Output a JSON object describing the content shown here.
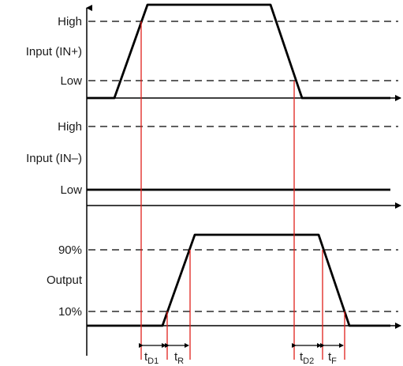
{
  "panels": {
    "input_plus": {
      "title": "Input (IN+)",
      "high": "High",
      "low": "Low"
    },
    "input_minus": {
      "title": "Input (IN–)",
      "high": "High",
      "low": "Low"
    },
    "output": {
      "title": "Output",
      "high": "90%",
      "low": "10%"
    }
  },
  "timing": {
    "td1": {
      "main": "t",
      "sub": "D1"
    },
    "tr": {
      "main": "t",
      "sub": "R"
    },
    "td2": {
      "main": "t",
      "sub": "D2"
    },
    "tf": {
      "main": "t",
      "sub": "F"
    }
  },
  "colors": {
    "signal": "#000000",
    "marker": "#e0201b",
    "dashed": "#000000"
  }
}
